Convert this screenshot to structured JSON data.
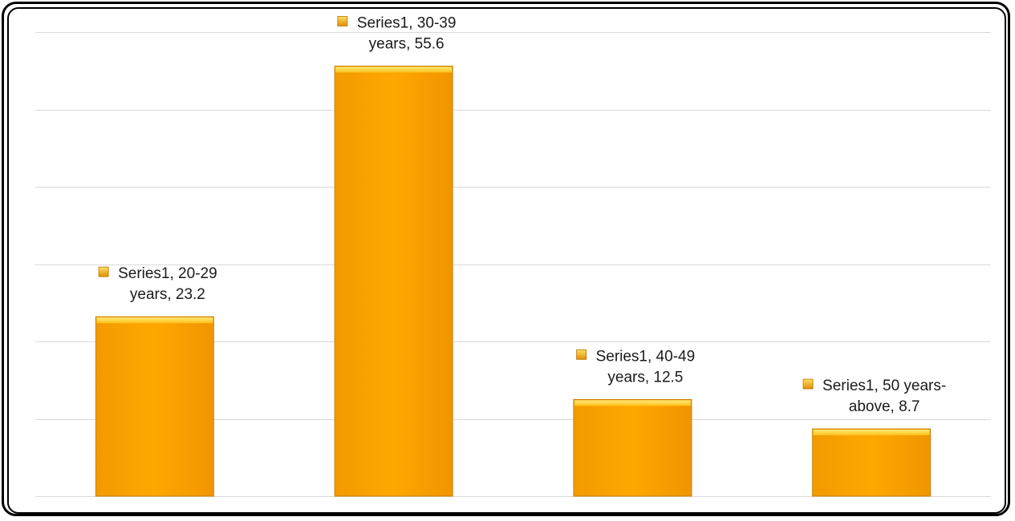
{
  "chart_data": {
    "type": "bar",
    "categories": [
      "20-29 years",
      "30-39 years",
      "40-49 years",
      "50 years-above"
    ],
    "series": [
      {
        "name": "Series1",
        "values": [
          23.2,
          55.6,
          12.5,
          8.7
        ]
      }
    ],
    "data_labels": [
      [
        "Series1, 20-29",
        "years, 23.2"
      ],
      [
        "Series1, 30-39",
        "years, 55.6"
      ],
      [
        "Series1, 40-49",
        "years, 12.5"
      ],
      [
        "Series1, 50 years-",
        "above, 8.7"
      ]
    ],
    "ylim": [
      0,
      60
    ],
    "grid": true,
    "colors": {
      "bar": "#FFA500",
      "bar_top": "#FFD94A",
      "bar_edge": "#C98200",
      "grid": "#D9D9D9"
    }
  }
}
